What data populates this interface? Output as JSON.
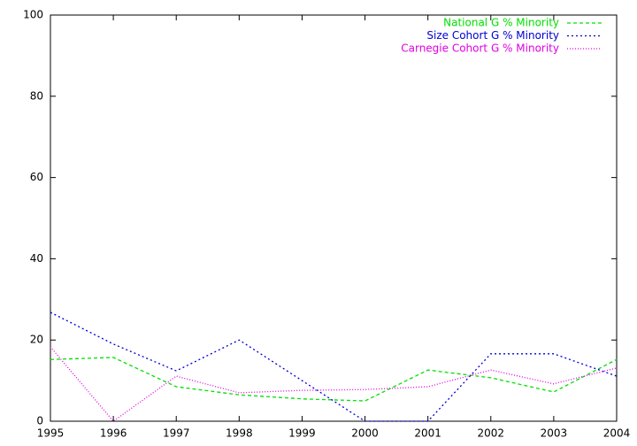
{
  "chart_data": {
    "type": "line",
    "x": [
      1995,
      1996,
      1997,
      1998,
      1999,
      2000,
      2001,
      2002,
      2003,
      2004
    ],
    "xlim": [
      1995,
      2004
    ],
    "xticks": [
      1995,
      1996,
      1997,
      1998,
      1999,
      2000,
      2001,
      2002,
      2003,
      2004
    ],
    "ylim": [
      0,
      100
    ],
    "yticks": [
      0,
      20,
      40,
      60,
      80,
      100
    ],
    "legend": "top-right",
    "series": [
      {
        "name": "National G % Minority",
        "color": "#00e000",
        "values": [
          15.2,
          15.7,
          8.5,
          6.5,
          5.5,
          5.0,
          12.6,
          10.7,
          7.2,
          15.2
        ]
      },
      {
        "name": "Size Cohort G % Minority",
        "color": "#0000d0",
        "values": [
          26.8,
          19.0,
          12.4,
          20.0,
          10.0,
          0,
          0,
          16.6,
          16.6,
          11.1
        ]
      },
      {
        "name": "Carnegie Cohort G % Minority",
        "color": "#e000e0",
        "values": [
          18.3,
          0,
          11.1,
          7.0,
          7.6,
          7.8,
          8.5,
          12.6,
          9.2,
          13.1
        ]
      }
    ]
  }
}
